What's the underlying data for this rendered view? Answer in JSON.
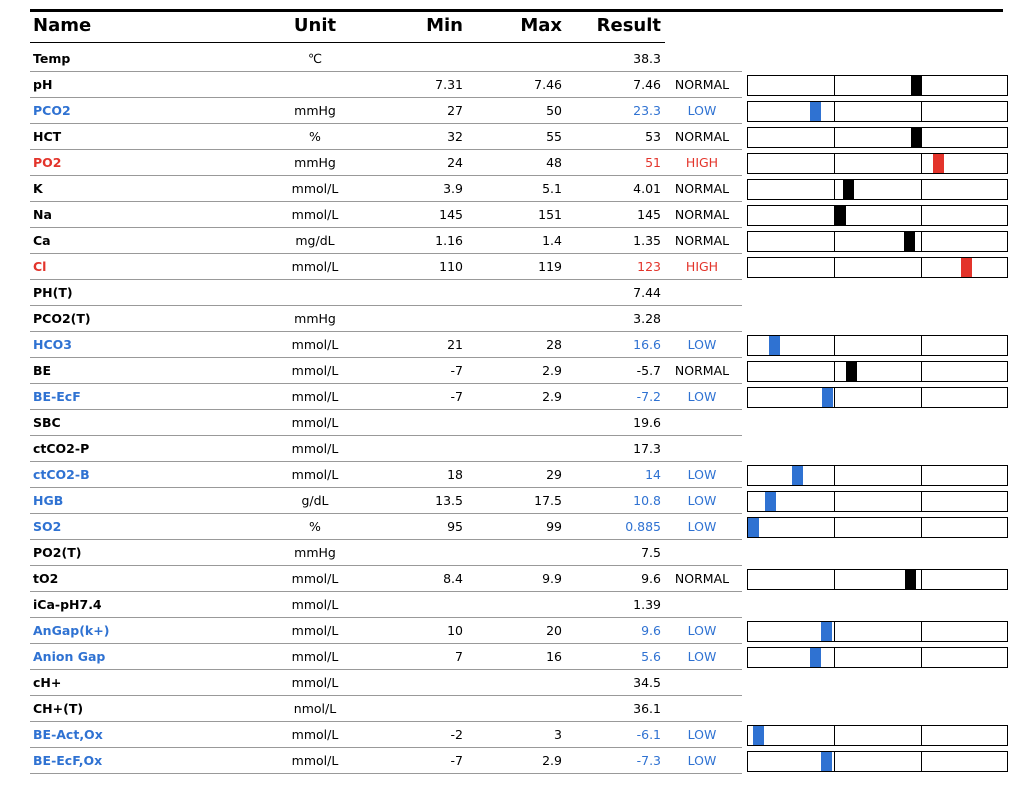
{
  "table": {
    "columns": [
      "Name",
      "Unit",
      "Min",
      "Max",
      "Result"
    ],
    "rows": [
      {
        "name": "Temp",
        "unit": "℃",
        "result": 38.3
      },
      {
        "name": "pH",
        "min": 7.31,
        "max": 7.46,
        "result": 7.46,
        "status": "NORMAL"
      },
      {
        "name": "PCO2",
        "unit": "mmHg",
        "min": 27,
        "max": 50,
        "result": 23.3,
        "status": "LOW"
      },
      {
        "name": "HCT",
        "unit": "%",
        "min": 32,
        "max": 55,
        "result": 53,
        "status": "NORMAL"
      },
      {
        "name": "PO2",
        "unit": "mmHg",
        "min": 24,
        "max": 48,
        "result": 51,
        "status": "HIGH"
      },
      {
        "name": "K",
        "unit": "mmol/L",
        "min": 3.9,
        "max": 5.1,
        "result": 4.01,
        "status": "NORMAL"
      },
      {
        "name": "Na",
        "unit": "mmol/L",
        "min": 145,
        "max": 151,
        "result": 145,
        "status": "NORMAL"
      },
      {
        "name": "Ca",
        "unit": "mg/dL",
        "min": 1.16,
        "max": 1.4,
        "result": 1.35,
        "status": "NORMAL"
      },
      {
        "name": "Cl",
        "unit": "mmol/L",
        "min": 110,
        "max": 119,
        "result": 123,
        "status": "HIGH"
      },
      {
        "name": "PH(T)",
        "result": 7.44
      },
      {
        "name": "PCO2(T)",
        "unit": "mmHg",
        "result": 3.28
      },
      {
        "name": "HCO3",
        "unit": "mmol/L",
        "min": 21,
        "max": 28,
        "result": 16.6,
        "status": "LOW"
      },
      {
        "name": "BE",
        "unit": "mmol/L",
        "min": -7,
        "max": 2.9,
        "result": -5.7,
        "status": "NORMAL"
      },
      {
        "name": "BE-EcF",
        "unit": "mmol/L",
        "min": -7,
        "max": 2.9,
        "result": -7.2,
        "status": "LOW"
      },
      {
        "name": "SBC",
        "unit": "mmol/L",
        "result": 19.6
      },
      {
        "name": "ctCO2-P",
        "unit": "mmol/L",
        "result": 17.3
      },
      {
        "name": "ctCO2-B",
        "unit": "mmol/L",
        "min": 18,
        "max": 29,
        "result": 14,
        "status": "LOW"
      },
      {
        "name": "HGB",
        "unit": "g/dL",
        "min": 13.5,
        "max": 17.5,
        "result": 10.8,
        "status": "LOW"
      },
      {
        "name": "SO2",
        "unit": "%",
        "min": 95,
        "max": 99,
        "result": 0.885,
        "status": "LOW"
      },
      {
        "name": "PO2(T)",
        "unit": "mmHg",
        "result": 7.5
      },
      {
        "name": "tO2",
        "unit": "mmol/L",
        "min": 8.4,
        "max": 9.9,
        "result": 9.6,
        "status": "NORMAL"
      },
      {
        "name": "iCa-pH7.4",
        "unit": "mmol/L",
        "result": 1.39
      },
      {
        "name": "AnGap(k+)",
        "unit": "mmol/L",
        "min": 10,
        "max": 20,
        "result": 9.6,
        "status": "LOW"
      },
      {
        "name": "Anion Gap",
        "unit": "mmol/L",
        "min": 7,
        "max": 16,
        "result": 5.6,
        "status": "LOW"
      },
      {
        "name": "cH+",
        "unit": "mmol/L",
        "result": 34.5
      },
      {
        "name": "CH+(T)",
        "unit": "nmol/L",
        "result": 36.1
      },
      {
        "name": "BE-Act,Ox",
        "unit": "mmol/L",
        "min": -2,
        "max": 3,
        "result": -6.1,
        "status": "LOW"
      },
      {
        "name": "BE-EcF,Ox",
        "unit": "mmol/L",
        "min": -7,
        "max": 2.9,
        "result": -7.3,
        "status": "LOW"
      }
    ]
  },
  "status_colors": {
    "LOW": "#2f72d2",
    "HIGH": "#e3342b",
    "NORMAL": "#000000"
  }
}
